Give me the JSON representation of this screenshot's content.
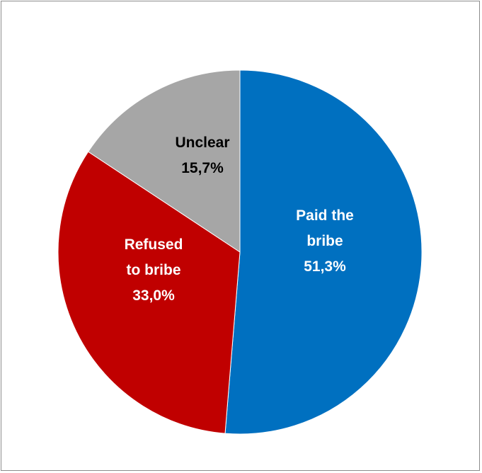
{
  "chart_data": {
    "type": "pie",
    "title": "",
    "start_angle_deg": 0,
    "direction": "clockwise",
    "slices": [
      {
        "label_lines": [
          "Paid the",
          "bribe"
        ],
        "value_text": "51,3%",
        "value": 51.3,
        "color": "#0070c0",
        "label_color": "#ffffff"
      },
      {
        "label_lines": [
          "Refused",
          "to bribe"
        ],
        "value_text": "33,0%",
        "value": 33.0,
        "color": "#c00000",
        "label_color": "#ffffff"
      },
      {
        "label_lines": [
          "Unclear"
        ],
        "value_text": "15,7%",
        "value": 15.7,
        "color": "#a6a6a6",
        "label_color": "#000000"
      }
    ]
  }
}
